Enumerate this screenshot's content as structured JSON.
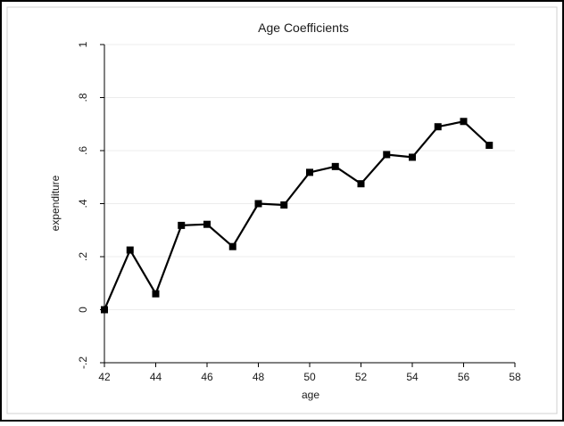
{
  "chart_data": {
    "type": "line",
    "title": "Age Coefficients",
    "xlabel": "age",
    "ylabel": "expenditure",
    "xlim": [
      42,
      58
    ],
    "ylim": [
      -0.2,
      1
    ],
    "x_ticks": [
      42,
      44,
      46,
      48,
      50,
      52,
      54,
      56,
      58
    ],
    "x_tick_labels": [
      "42",
      "44",
      "46",
      "48",
      "50",
      "52",
      "54",
      "56",
      "58"
    ],
    "y_ticks": [
      -0.2,
      0,
      0.2,
      0.4,
      0.6,
      0.8,
      1
    ],
    "y_tick_labels": [
      "-.2",
      "0",
      ".2",
      ".4",
      ".6",
      ".8",
      "1"
    ],
    "grid": true,
    "marker": "square",
    "series": [
      {
        "x": [
          42,
          43,
          44,
          45,
          46,
          47,
          48,
          49,
          50,
          51,
          52,
          53,
          54,
          55,
          56,
          57
        ],
        "values": [
          0.0,
          0.225,
          0.06,
          0.318,
          0.322,
          0.238,
          0.4,
          0.395,
          0.518,
          0.54,
          0.475,
          0.585,
          0.575,
          0.69,
          0.71,
          0.62
        ]
      }
    ],
    "colors": {
      "line": "#000000",
      "grid": "#ececec",
      "axis": "#000000",
      "frame": "#000000",
      "background": "#ffffff"
    }
  }
}
